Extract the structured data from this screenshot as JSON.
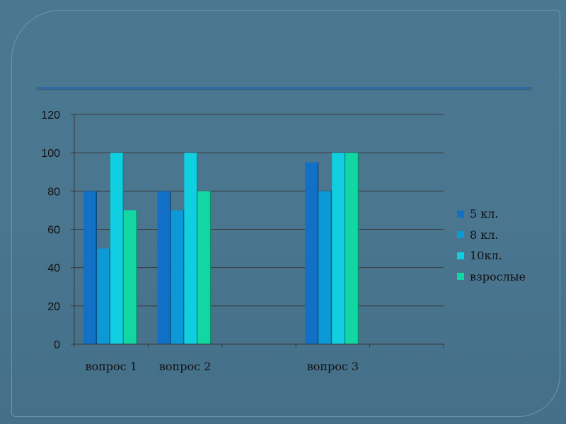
{
  "chart_data": {
    "type": "bar",
    "title": "",
    "xlabel": "",
    "ylabel": "",
    "ylim": [
      0,
      120
    ],
    "yticks": [
      0,
      20,
      40,
      60,
      80,
      100,
      120
    ],
    "grid": true,
    "legend_position": "right",
    "categories": [
      "вопрос 1",
      "вопрос 2",
      "",
      "вопрос 3",
      ""
    ],
    "series": [
      {
        "name": "5 кл.",
        "color": "#1270c6",
        "values": [
          80,
          80,
          null,
          95,
          null
        ]
      },
      {
        "name": "8 кл.",
        "color": "#0d98d8",
        "values": [
          50,
          70,
          null,
          80,
          null
        ]
      },
      {
        "name": "10кл.",
        "color": "#10cfe0",
        "values": [
          100,
          100,
          null,
          100,
          null
        ]
      },
      {
        "name": "взрослые",
        "color": "#13d7a2",
        "values": [
          70,
          80,
          null,
          100,
          null
        ]
      }
    ]
  }
}
